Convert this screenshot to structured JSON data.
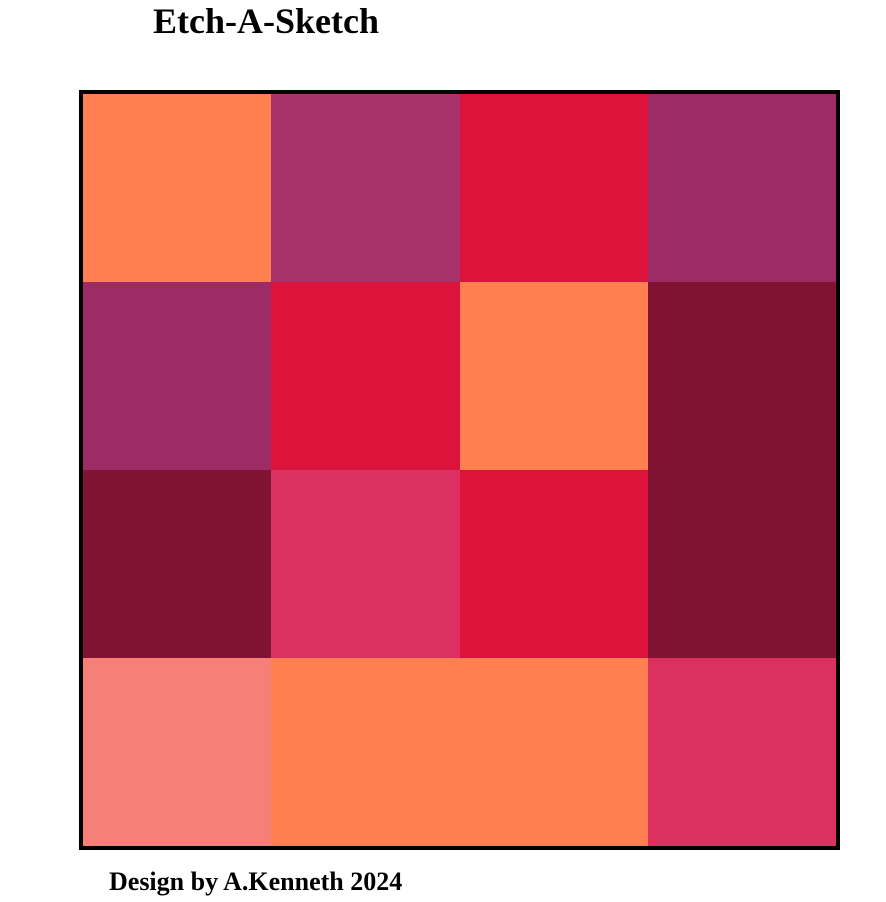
{
  "app": {
    "title": "Etch-A-Sketch"
  },
  "footer": {
    "text": "Design by A.Kenneth 2024"
  },
  "grid": {
    "size": 4,
    "cells": [
      "#FF7F50",
      "#A8336A",
      "#DC143C",
      "#9D2C66",
      "#9D2C66",
      "#DC143C",
      "#FF7F50",
      "#801331",
      "#801331",
      "#DC3160",
      "#DC143C",
      "#801331",
      "#F67F77",
      "#FF7F50",
      "#FF7F50",
      "#DC3160"
    ]
  }
}
